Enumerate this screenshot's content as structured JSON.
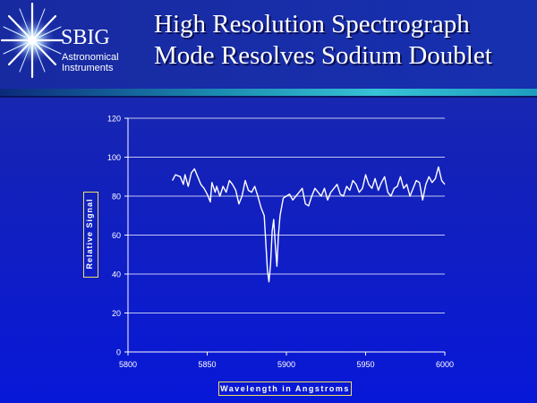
{
  "header": {
    "brand": "SBIG",
    "brand_sub": [
      "Astronomical",
      "Instruments"
    ],
    "title": [
      "High Resolution Spectrograph",
      "Mode Resolves Sodium Doublet"
    ]
  },
  "colors": {
    "line": "#ffffff",
    "grid": "#ffffff",
    "axis_text": "#ffffff",
    "label_border": "#f0e060"
  },
  "chart_data": {
    "type": "line",
    "xlabel": "Wavelength in Angstroms",
    "ylabel": "Relative Signal",
    "xlim": [
      5800,
      6000
    ],
    "ylim": [
      0,
      120
    ],
    "xticks": [
      5800,
      5850,
      5900,
      5950,
      6000
    ],
    "yticks": [
      0,
      20,
      40,
      60,
      80,
      100,
      120
    ],
    "grid": "horizontal",
    "series": [
      {
        "x": [
          5828,
          5830,
          5833,
          5835,
          5836,
          5838,
          5840,
          5842,
          5844,
          5846,
          5848,
          5850,
          5852,
          5853,
          5855,
          5856,
          5858,
          5860,
          5862,
          5864,
          5866,
          5868,
          5870,
          5872,
          5874,
          5876,
          5878,
          5880,
          5882,
          5884,
          5886,
          5888,
          5889,
          5890,
          5891,
          5892,
          5893,
          5894,
          5895,
          5896,
          5898,
          5900,
          5902,
          5904,
          5906,
          5908,
          5910,
          5912,
          5914,
          5916,
          5918,
          5920,
          5922,
          5924,
          5926,
          5928,
          5930,
          5932,
          5934,
          5936,
          5938,
          5940,
          5942,
          5944,
          5946,
          5948,
          5950,
          5952,
          5954,
          5956,
          5958,
          5960,
          5962,
          5964,
          5966,
          5968,
          5970,
          5972,
          5974,
          5976,
          5978,
          5980,
          5982,
          5984,
          5986,
          5988,
          5990,
          5992,
          5994,
          5996,
          5998,
          6000
        ],
        "y": [
          88,
          91,
          90,
          86,
          91,
          85,
          92,
          94,
          90,
          86,
          84,
          81,
          77,
          87,
          82,
          85,
          80,
          85,
          82,
          88,
          86,
          83,
          76,
          80,
          88,
          83,
          82,
          85,
          80,
          74,
          70,
          42,
          36,
          45,
          62,
          68,
          55,
          44,
          60,
          70,
          79,
          80,
          81,
          78,
          80,
          82,
          84,
          76,
          75,
          80,
          84,
          82,
          80,
          84,
          78,
          82,
          84,
          86,
          81,
          80,
          85,
          83,
          88,
          86,
          82,
          84,
          91,
          86,
          84,
          89,
          83,
          87,
          90,
          82,
          80,
          84,
          85,
          90,
          84,
          86,
          80,
          84,
          88,
          87,
          78,
          86,
          90,
          87,
          89,
          95,
          88,
          86
        ]
      }
    ]
  }
}
